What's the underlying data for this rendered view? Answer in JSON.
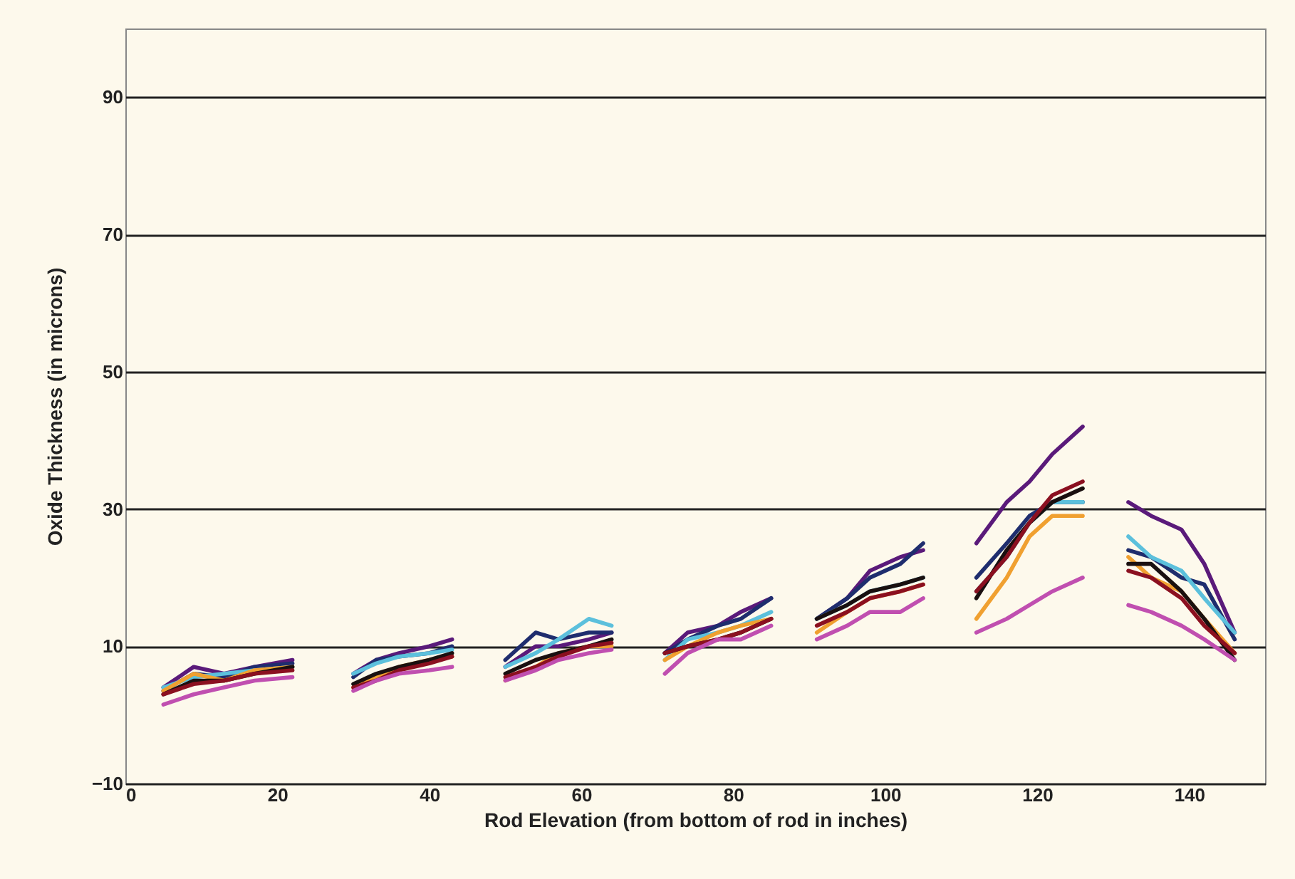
{
  "chart_data": {
    "type": "line",
    "xlabel": "Rod Elevation (from bottom of rod in inches)",
    "ylabel": "Oxide Thickness (in microns)",
    "x": [
      5,
      9,
      13,
      17,
      22,
      26,
      30,
      33,
      36,
      40,
      43,
      47,
      50,
      54,
      57,
      61,
      64,
      67,
      71,
      74,
      78,
      81,
      85,
      88,
      91,
      95,
      98,
      102,
      105,
      108,
      112,
      116,
      119,
      122,
      126,
      129,
      132,
      135,
      139,
      142,
      146
    ],
    "series": [
      {
        "color": "#5a1a7a",
        "values": [
          4,
          7,
          6,
          7,
          8,
          null,
          6,
          8,
          9,
          10,
          11,
          null,
          7,
          10,
          10,
          11,
          12,
          null,
          9,
          12,
          13,
          15,
          17,
          null,
          14,
          17,
          21,
          23,
          24,
          null,
          25,
          31,
          34,
          38,
          42,
          null,
          31,
          29,
          27,
          22,
          12
        ]
      },
      {
        "color": "#1f2d6e",
        "values": [
          3.5,
          6,
          5.5,
          7,
          7.5,
          null,
          5.5,
          8,
          8.5,
          9,
          10,
          null,
          8,
          12,
          11,
          12,
          12,
          null,
          9,
          11,
          13,
          14,
          17,
          null,
          14,
          17,
          20,
          22,
          25,
          null,
          20,
          25,
          29,
          31,
          31,
          null,
          24,
          23,
          20,
          19,
          11
        ]
      },
      {
        "color": "#5cc0dc",
        "values": [
          4,
          5.5,
          6,
          6.5,
          7,
          null,
          6,
          7.5,
          8.5,
          9,
          9.5,
          null,
          7,
          9,
          11,
          14,
          13,
          null,
          8,
          11,
          12,
          13,
          15,
          null,
          14,
          16,
          18,
          19,
          20,
          null,
          18,
          23,
          28,
          31,
          31,
          null,
          26,
          23,
          21,
          17,
          12
        ]
      },
      {
        "color": "#f0a030",
        "values": [
          3.5,
          6,
          5,
          6.5,
          7,
          null,
          4,
          5.5,
          7,
          8,
          8.5,
          null,
          5,
          7,
          9,
          10,
          10,
          null,
          8,
          10,
          12,
          13,
          14,
          null,
          12,
          15,
          17,
          18,
          19,
          null,
          14,
          20,
          26,
          29,
          29,
          null,
          23,
          20,
          18,
          14,
          9
        ]
      },
      {
        "color": "#1a1010",
        "values": [
          3,
          5,
          5,
          6,
          7,
          null,
          4.5,
          6,
          7,
          8,
          9,
          null,
          6,
          8,
          9,
          10,
          11,
          null,
          9,
          10,
          11,
          12,
          14,
          null,
          14,
          16,
          18,
          19,
          20,
          null,
          17,
          24,
          28,
          31,
          33,
          null,
          22,
          22,
          18,
          14,
          8
        ]
      },
      {
        "color": "#8b1020",
        "values": [
          3,
          4.5,
          5,
          6,
          6.5,
          null,
          4,
          5,
          6.5,
          7.5,
          8.5,
          null,
          5.5,
          7,
          8.5,
          10,
          10.5,
          null,
          9,
          10,
          11,
          12,
          14,
          null,
          13,
          15,
          17,
          18,
          19,
          null,
          18,
          23,
          28,
          32,
          34,
          null,
          21,
          20,
          17,
          13,
          9
        ]
      },
      {
        "color": "#c04fb0",
        "values": [
          1.5,
          3,
          4,
          5,
          5.5,
          null,
          3.5,
          5,
          6,
          6.5,
          7,
          null,
          5,
          6.5,
          8,
          9,
          9.5,
          null,
          6,
          9,
          11,
          11,
          13,
          null,
          11,
          13,
          15,
          15,
          17,
          null,
          12,
          14,
          16,
          18,
          20,
          null,
          16,
          15,
          13,
          11,
          8
        ]
      }
    ],
    "xlim": [
      0,
      150
    ],
    "xticks": [
      0,
      20,
      40,
      60,
      80,
      100,
      120,
      140
    ],
    "ylim": [
      -10,
      100
    ],
    "yticks": [
      -10,
      10,
      30,
      50,
      70,
      90
    ],
    "grid": "y",
    "legend": false,
    "marker": "none",
    "line_style": "solid"
  }
}
